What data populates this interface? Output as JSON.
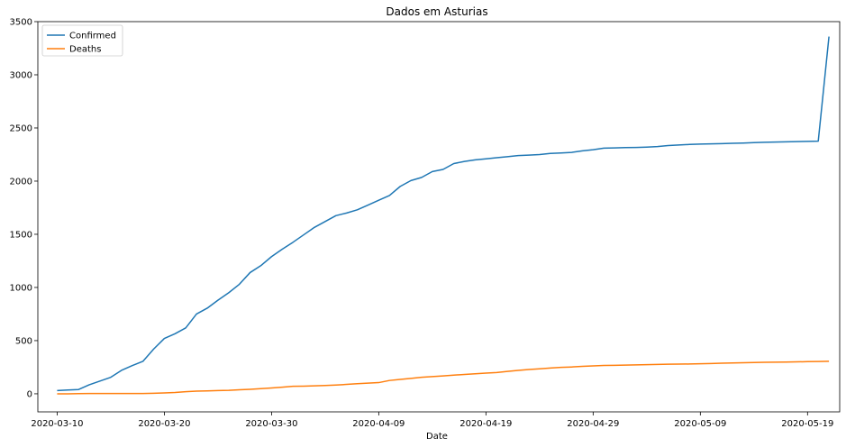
{
  "chart_data": {
    "type": "line",
    "title": "Dados em Asturias",
    "xlabel": "Date",
    "ylabel": "",
    "ylim": [
      -170,
      3500
    ],
    "yticks": [
      0,
      500,
      1000,
      1500,
      2000,
      2500,
      3000,
      3500
    ],
    "xticks": [
      "2020-03-10",
      "2020-03-20",
      "2020-03-30",
      "2020-04-09",
      "2020-04-19",
      "2020-04-29",
      "2020-05-09",
      "2020-05-19"
    ],
    "x": [
      "2020-03-10",
      "2020-03-11",
      "2020-03-12",
      "2020-03-13",
      "2020-03-14",
      "2020-03-15",
      "2020-03-16",
      "2020-03-17",
      "2020-03-18",
      "2020-03-19",
      "2020-03-20",
      "2020-03-21",
      "2020-03-22",
      "2020-03-23",
      "2020-03-24",
      "2020-03-25",
      "2020-03-26",
      "2020-03-27",
      "2020-03-28",
      "2020-03-29",
      "2020-03-30",
      "2020-03-31",
      "2020-04-01",
      "2020-04-02",
      "2020-04-03",
      "2020-04-04",
      "2020-04-05",
      "2020-04-06",
      "2020-04-07",
      "2020-04-08",
      "2020-04-09",
      "2020-04-10",
      "2020-04-11",
      "2020-04-12",
      "2020-04-13",
      "2020-04-14",
      "2020-04-15",
      "2020-04-16",
      "2020-04-17",
      "2020-04-18",
      "2020-04-19",
      "2020-04-20",
      "2020-04-21",
      "2020-04-22",
      "2020-04-23",
      "2020-04-24",
      "2020-04-25",
      "2020-04-26",
      "2020-04-27",
      "2020-04-28",
      "2020-04-29",
      "2020-04-30",
      "2020-05-01",
      "2020-05-02",
      "2020-05-03",
      "2020-05-04",
      "2020-05-05",
      "2020-05-06",
      "2020-05-07",
      "2020-05-08",
      "2020-05-09",
      "2020-05-10",
      "2020-05-11",
      "2020-05-12",
      "2020-05-13",
      "2020-05-14",
      "2020-05-15",
      "2020-05-16",
      "2020-05-17",
      "2020-05-18",
      "2020-05-19",
      "2020-05-20",
      "2020-05-21"
    ],
    "series": [
      {
        "name": "Confirmed",
        "color": "#1f77b4",
        "values": [
          30,
          35,
          40,
          85,
          120,
          155,
          220,
          265,
          305,
          420,
          520,
          565,
          620,
          750,
          805,
          880,
          950,
          1030,
          1140,
          1205,
          1290,
          1360,
          1425,
          1495,
          1565,
          1620,
          1675,
          1700,
          1730,
          1775,
          1820,
          1865,
          1950,
          2005,
          2035,
          2090,
          2110,
          2165,
          2185,
          2200,
          2210,
          2220,
          2230,
          2240,
          2245,
          2250,
          2260,
          2265,
          2270,
          2285,
          2295,
          2310,
          2312,
          2315,
          2317,
          2320,
          2325,
          2335,
          2340,
          2345,
          2348,
          2350,
          2353,
          2356,
          2358,
          2362,
          2365,
          2367,
          2370,
          2372,
          2374,
          2376,
          3360
        ]
      },
      {
        "name": "Deaths",
        "color": "#ff7f0e",
        "values": [
          0,
          0,
          2,
          3,
          3,
          3,
          3,
          3,
          3,
          5,
          8,
          12,
          20,
          25,
          27,
          30,
          32,
          38,
          42,
          48,
          55,
          62,
          70,
          72,
          75,
          78,
          82,
          88,
          95,
          100,
          105,
          125,
          135,
          145,
          155,
          162,
          168,
          175,
          182,
          188,
          195,
          200,
          210,
          220,
          228,
          235,
          242,
          248,
          252,
          258,
          262,
          266,
          268,
          270,
          272,
          274,
          276,
          278,
          279,
          280,
          282,
          285,
          288,
          290,
          292,
          294,
          296,
          297,
          298,
          300,
          302,
          304,
          306
        ]
      }
    ],
    "legend": {
      "placement": "top-left",
      "entries": [
        "Confirmed",
        "Deaths"
      ]
    }
  }
}
